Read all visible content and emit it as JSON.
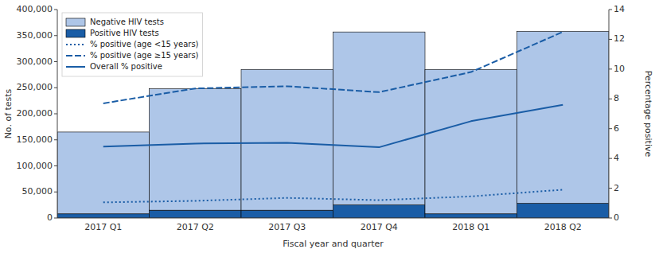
{
  "chart_data": {
    "type": "bar",
    "stacked": true,
    "categories": [
      "2017 Q1",
      "2017 Q2",
      "2017 Q3",
      "2017 Q4",
      "2018 Q1",
      "2018 Q2"
    ],
    "xlabel": "Fiscal year and quarter",
    "ylabel": "No. of tests",
    "y2label": "Percentage positive",
    "ylim": [
      0,
      400000
    ],
    "yticks": [
      0,
      {
        "value": 50000,
        "label": "50,000"
      },
      {
        "value": 100000,
        "label": "100,000"
      },
      {
        "value": 150000,
        "label": "150,000"
      },
      {
        "value": 200000,
        "label": "200,000"
      },
      {
        "value": 250000,
        "label": "250,000"
      },
      {
        "value": 300000,
        "label": "300,000"
      },
      {
        "value": 350000,
        "label": "350,000"
      },
      {
        "value": 400000,
        "label": "400,000"
      }
    ],
    "y2lim": [
      0,
      14
    ],
    "y2ticks": [
      0,
      2,
      4,
      6,
      8,
      10,
      12,
      14
    ],
    "grid": false,
    "legend": "upper left",
    "series": [
      {
        "name": "Positive HIV tests",
        "type": "bar",
        "color": "#1a5da6",
        "values": [
          8000,
          15000,
          15000,
          25000,
          8000,
          28000
        ]
      },
      {
        "name": "Negative HIV tests",
        "type": "bar",
        "color": "#aec6e8",
        "values": [
          157000,
          233000,
          270000,
          332000,
          277000,
          330000
        ]
      },
      {
        "name": "% positive (age <15 years)",
        "type": "line",
        "axis": "y2",
        "color": "#1a5da6",
        "line_style": "dotted",
        "values": [
          1.05,
          1.15,
          1.35,
          1.2,
          1.45,
          1.9
        ]
      },
      {
        "name": "% positive (age ≥15 years)",
        "type": "line",
        "axis": "y2",
        "color": "#1a5da6",
        "line_style": "dashed",
        "values": [
          7.7,
          8.7,
          8.85,
          8.45,
          9.8,
          12.5
        ]
      },
      {
        "name": "Overall % positive",
        "type": "line",
        "axis": "y2",
        "color": "#1a5da6",
        "line_style": "solid",
        "values": [
          4.8,
          5.0,
          5.05,
          4.75,
          6.5,
          7.6
        ]
      }
    ]
  }
}
